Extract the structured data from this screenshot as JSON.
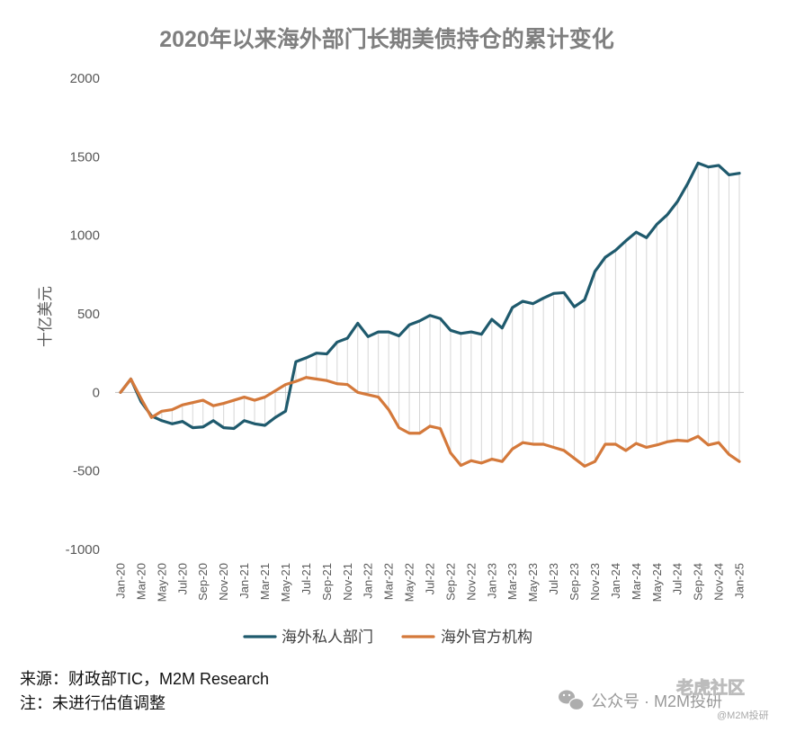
{
  "chart_data": {
    "type": "line",
    "title": "2020年以来海外部门长期美债持仓的累计变化",
    "xlabel": "",
    "ylabel": "十亿美元",
    "ylim": [
      -1000,
      2000
    ],
    "yticks": [
      2000,
      1500,
      1000,
      500,
      0,
      -500,
      -1000
    ],
    "xtick_labels": [
      "Jan-20",
      "Mar-20",
      "May-20",
      "Jul-20",
      "Sep-20",
      "Nov-20",
      "Jan-21",
      "Mar-21",
      "May-21",
      "Jul-21",
      "Sep-21",
      "Nov-21",
      "Jan-22",
      "Mar-22",
      "May-22",
      "Jul-22",
      "Sep-22",
      "Nov-22",
      "Jan-23",
      "Mar-23",
      "May-23",
      "Jul-23",
      "Sep-23",
      "Nov-23",
      "Jan-24",
      "Mar-24",
      "May-24",
      "Jul-24",
      "Sep-24",
      "Nov-24",
      "Jan-25"
    ],
    "grid": false,
    "legend": "bottom",
    "series": [
      {
        "name": "海外私人部门",
        "color": "#1f5a6d",
        "values": [
          0,
          85,
          -60,
          -150,
          -180,
          -200,
          -185,
          -225,
          -220,
          -180,
          -225,
          -230,
          -180,
          -200,
          -210,
          -160,
          -120,
          195,
          220,
          250,
          245,
          320,
          345,
          440,
          355,
          385,
          385,
          360,
          430,
          455,
          490,
          470,
          395,
          375,
          385,
          370,
          465,
          410,
          540,
          580,
          565,
          600,
          630,
          635,
          545,
          590,
          770,
          860,
          905,
          965,
          1020,
          985,
          1070,
          1130,
          1215,
          1330,
          1460,
          1435,
          1445,
          1385,
          1395
        ]
      },
      {
        "name": "海外官方机构",
        "color": "#d4793b",
        "values": [
          0,
          85,
          -40,
          -160,
          -120,
          -110,
          -80,
          -65,
          -50,
          -85,
          -70,
          -50,
          -30,
          -50,
          -30,
          10,
          50,
          70,
          95,
          85,
          75,
          55,
          50,
          0,
          -15,
          -30,
          -110,
          -225,
          -260,
          -260,
          -215,
          -230,
          -385,
          -465,
          -435,
          -450,
          -425,
          -440,
          -360,
          -320,
          -330,
          -330,
          -350,
          -370,
          -420,
          -470,
          -440,
          -330,
          -330,
          -370,
          -325,
          -350,
          -335,
          -315,
          -305,
          -310,
          -280,
          -335,
          -320,
          -395,
          -440
        ]
      }
    ]
  },
  "footer": {
    "source": "来源：财政部TIC，M2M Research",
    "note": "注：未进行估值调整"
  },
  "watermark": {
    "wechat_label": "公众号 · M2M投研",
    "site": "老虎社区",
    "handle": "@M2M投研"
  }
}
